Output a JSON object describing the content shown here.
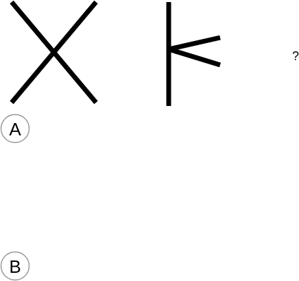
{
  "figures": [
    {
      "name": "x-cross-figure",
      "shape": "x-cross"
    },
    {
      "name": "vertical-line-with-wedge-figure",
      "shape": "vertical-line-with-right-wedge"
    }
  ],
  "question_mark": "?",
  "options": [
    {
      "label": "A"
    },
    {
      "label": "B"
    }
  ],
  "colors": {
    "stroke": "#000000",
    "circle": "#999999",
    "background": "#ffffff"
  }
}
